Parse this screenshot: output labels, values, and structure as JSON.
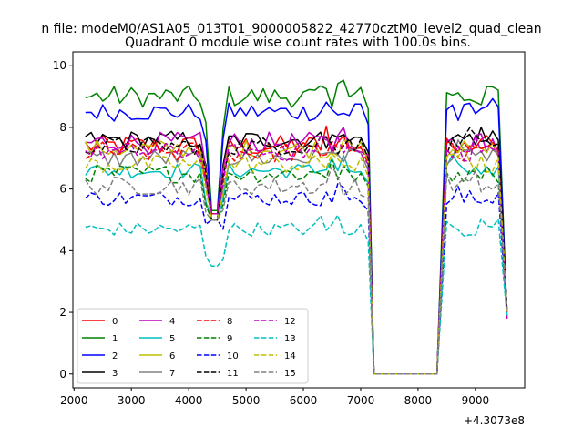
{
  "chart_data": {
    "type": "line",
    "suptitle": "n file: modeM0/AS1A05_013T01_9000005822_42770cztM0_level2_quad_clean",
    "title": "Quadrant 0 module wise count rates with 100.0s bins.",
    "xlabel": "",
    "ylabel": "",
    "x_offset_label": "+4.3073e8",
    "xlim": [
      1980,
      9860
    ],
    "ylim": [
      -0.45,
      10.45
    ],
    "xticks": [
      {
        "value": 2000,
        "label": "2000"
      },
      {
        "value": 3000,
        "label": "3000"
      },
      {
        "value": 4000,
        "label": "4000"
      },
      {
        "value": 5000,
        "label": "5000"
      },
      {
        "value": 6000,
        "label": "6000"
      },
      {
        "value": 7000,
        "label": "7000"
      },
      {
        "value": 8000,
        "label": "8000"
      },
      {
        "value": 9000,
        "label": "9000"
      }
    ],
    "yticks": [
      {
        "value": 0,
        "label": "0"
      },
      {
        "value": 2,
        "label": "2"
      },
      {
        "value": 4,
        "label": "4"
      },
      {
        "value": 6,
        "label": "6"
      },
      {
        "value": 8,
        "label": "8"
      },
      {
        "value": 10,
        "label": "10"
      }
    ],
    "grid": false,
    "legend_position": "lower-left",
    "legend_columns": 4,
    "series": [
      {
        "name": "0",
        "color": "#ff0000",
        "dash": "solid",
        "baseline": 7.4,
        "jitter": 0.35,
        "peak": 8.1
      },
      {
        "name": "1",
        "color": "#008000",
        "dash": "solid",
        "baseline": 9.0,
        "jitter": 0.35,
        "peak": 9.9
      },
      {
        "name": "2",
        "color": "#0000ff",
        "dash": "solid",
        "baseline": 8.5,
        "jitter": 0.3,
        "peak": 9.0
      },
      {
        "name": "3",
        "color": "#000000",
        "dash": "solid",
        "baseline": 7.6,
        "jitter": 0.3,
        "peak": 8.2
      },
      {
        "name": "4",
        "color": "#bf00bf",
        "dash": "solid",
        "baseline": 7.5,
        "jitter": 0.35,
        "peak": 8.0
      },
      {
        "name": "5",
        "color": "#00bfbf",
        "dash": "solid",
        "baseline": 6.6,
        "jitter": 0.25,
        "peak": 7.1
      },
      {
        "name": "6",
        "color": "#bfbf00",
        "dash": "solid",
        "baseline": 7.3,
        "jitter": 0.3,
        "peak": 8.0
      },
      {
        "name": "7",
        "color": "#808080",
        "dash": "solid",
        "baseline": 7.0,
        "jitter": 0.3,
        "peak": 7.6
      },
      {
        "name": "8",
        "color": "#ff0000",
        "dash": "dashed",
        "baseline": 7.2,
        "jitter": 0.35,
        "peak": 8.0
      },
      {
        "name": "9",
        "color": "#008000",
        "dash": "dashed",
        "baseline": 6.5,
        "jitter": 0.3,
        "peak": 7.0
      },
      {
        "name": "10",
        "color": "#0000ff",
        "dash": "dashed",
        "baseline": 5.7,
        "jitter": 0.25,
        "peak": 6.3
      },
      {
        "name": "11",
        "color": "#000000",
        "dash": "dashed",
        "baseline": 7.4,
        "jitter": 0.3,
        "peak": 8.0
      },
      {
        "name": "12",
        "color": "#bf00bf",
        "dash": "dashed",
        "baseline": 7.2,
        "jitter": 0.3,
        "peak": 7.8
      },
      {
        "name": "13",
        "color": "#00bfbf",
        "dash": "dashed",
        "baseline": 4.7,
        "jitter": 0.22,
        "peak": 5.2
      },
      {
        "name": "14",
        "color": "#bfbf00",
        "dash": "dashed",
        "baseline": 6.8,
        "jitter": 0.3,
        "peak": 7.5
      },
      {
        "name": "15",
        "color": "#808080",
        "dash": "dashed",
        "baseline": 6.1,
        "jitter": 0.3,
        "peak": 6.8
      }
    ],
    "time_structure": {
      "start": 2200,
      "bin": 100,
      "dip_at": 4450,
      "dip_values": {
        "0": 5.2,
        "1": 5.3,
        "2": 5.2,
        "3": 5.0,
        "4": 5.2,
        "5": 5.0,
        "6": 5.0,
        "7": 5.0,
        "8": 5.2,
        "9": 5.0,
        "10": 5.0,
        "11": 5.0,
        "12": 5.2,
        "13": 3.5,
        "14": 5.0,
        "15": 5.0
      },
      "drop_start": 7000,
      "zero_from": 7230,
      "zero_to": 8330,
      "resume_at": 8500,
      "end": 9550,
      "end_value": 1.8
    }
  }
}
